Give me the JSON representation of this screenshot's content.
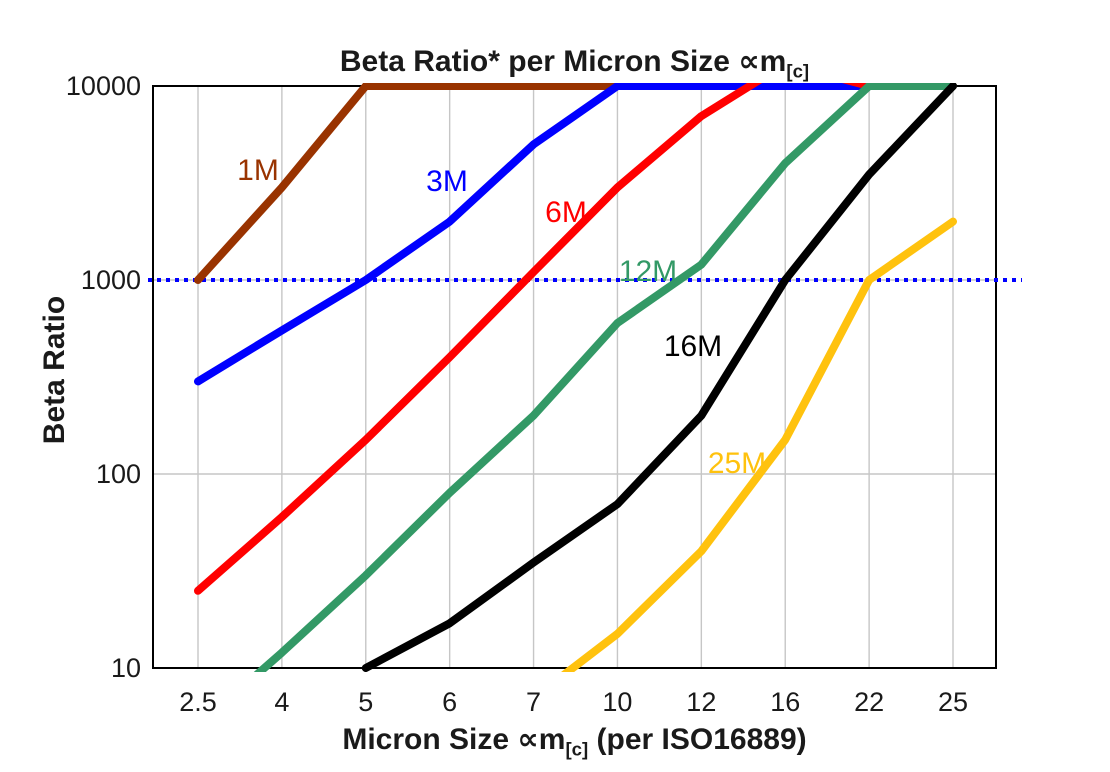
{
  "title": {
    "main": "Beta Ratio* per Micron Size ",
    "symbol": "∝m",
    "subscript": "[c]"
  },
  "y_axis": {
    "title": "Beta Ratio"
  },
  "x_axis": {
    "title_pre": "Micron Size ",
    "title_symbol": "∝m",
    "title_subscript": "[c]",
    "title_post": " (per ISO16889)"
  },
  "chart_data": {
    "type": "line",
    "title": "Beta Ratio* per Micron Size ∝m[c]",
    "xlabel": "Micron Size ∝m[c] (per ISO16889)",
    "ylabel": "Beta Ratio",
    "y_scale": "log",
    "ylim": [
      10,
      10000
    ],
    "y_ticks": [
      10,
      100,
      1000,
      10000
    ],
    "x_tick_labels": [
      "2.5",
      "4",
      "5",
      "6",
      "7",
      "10",
      "12",
      "16",
      "22",
      "25"
    ],
    "categories": [
      2.5,
      4,
      5,
      6,
      7,
      10,
      12,
      16,
      22,
      25
    ],
    "grid": "vertical-category-and-horizontal-decade",
    "grid_color": "#c6c6c6",
    "legend_position": "inline-labels-on-lines",
    "reference_line": {
      "y": 1000,
      "color": "#0000ff",
      "style": "dotted"
    },
    "series": [
      {
        "name": "1M",
        "color": "#993300",
        "values": [
          1000,
          3000,
          10000,
          10000,
          10000,
          10000,
          null,
          null,
          null,
          null
        ],
        "label_pos": [
          258,
          170
        ]
      },
      {
        "name": "3M",
        "color": "#0000ff",
        "values": [
          300,
          550,
          1000,
          2000,
          5000,
          10000,
          10000,
          10000,
          10000,
          null
        ],
        "label_pos": [
          447,
          181
        ]
      },
      {
        "name": "6M",
        "color": "#ff0000",
        "values": [
          25,
          60,
          150,
          400,
          1100,
          3000,
          7000,
          13000,
          10000,
          10000
        ],
        "label_pos": [
          566,
          212
        ]
      },
      {
        "name": "12M",
        "color": "#339966",
        "values": [
          5,
          12,
          30,
          80,
          200,
          600,
          1200,
          4000,
          10000,
          10000
        ],
        "label_pos": [
          648,
          271
        ]
      },
      {
        "name": "16M",
        "color": "#000000",
        "values": [
          null,
          null,
          10,
          17,
          35,
          70,
          200,
          1000,
          3500,
          10000
        ],
        "label_pos": [
          693,
          346
        ]
      },
      {
        "name": "25M",
        "color": "#ffc20e",
        "values": [
          null,
          null,
          null,
          null,
          7,
          15,
          40,
          150,
          1000,
          2000
        ],
        "label_pos": [
          737,
          463
        ]
      }
    ]
  }
}
